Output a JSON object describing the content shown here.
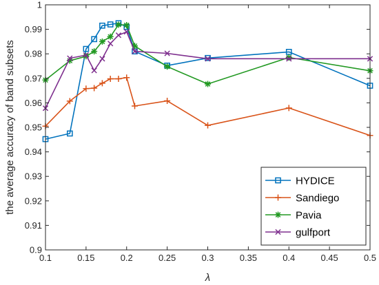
{
  "chart_data": {
    "type": "line",
    "xlabel": "λ",
    "ylabel": "the average accuracy of band subsets",
    "xlim": [
      0.1,
      0.5
    ],
    "ylim": [
      0.9,
      1.0
    ],
    "xticks": [
      0.1,
      0.15,
      0.2,
      0.25,
      0.3,
      0.35,
      0.4,
      0.45,
      0.5
    ],
    "xtick_labels": [
      "0.1",
      "0.15",
      "0.2",
      "0.25",
      "0.3",
      "0.35",
      "0.4",
      "0.45",
      "0.5"
    ],
    "yticks": [
      0.9,
      0.91,
      0.92,
      0.93,
      0.94,
      0.95,
      0.96,
      0.97,
      0.98,
      0.99,
      1.0
    ],
    "ytick_labels": [
      "0.9",
      "0.91",
      "0.92",
      "0.93",
      "0.94",
      "0.95",
      "0.96",
      "0.97",
      "0.98",
      "0.99",
      "1"
    ],
    "grid": false,
    "legend_position": "bottom-right",
    "series": [
      {
        "name": "HYDICE",
        "color": "#0072BD",
        "marker": "square",
        "x": [
          0.1,
          0.13,
          0.15,
          0.16,
          0.17,
          0.18,
          0.19,
          0.2,
          0.21,
          0.25,
          0.3,
          0.4,
          0.5
        ],
        "y": [
          0.9452,
          0.9475,
          0.982,
          0.986,
          0.9915,
          0.992,
          0.9925,
          0.991,
          0.981,
          0.9752,
          0.9783,
          0.9808,
          0.967
        ]
      },
      {
        "name": "Sandiego",
        "color": "#D95319",
        "marker": "plus",
        "x": [
          0.1,
          0.13,
          0.15,
          0.16,
          0.17,
          0.18,
          0.19,
          0.2,
          0.21,
          0.25,
          0.3,
          0.4,
          0.5
        ],
        "y": [
          0.9505,
          0.9607,
          0.9658,
          0.966,
          0.968,
          0.9698,
          0.9698,
          0.9703,
          0.9587,
          0.9608,
          0.9508,
          0.9579,
          0.9467
        ]
      },
      {
        "name": "Pavia",
        "color": "#229922",
        "marker": "asterisk",
        "x": [
          0.1,
          0.13,
          0.15,
          0.16,
          0.17,
          0.18,
          0.19,
          0.2,
          0.21,
          0.25,
          0.3,
          0.4,
          0.5
        ],
        "y": [
          0.9693,
          0.9772,
          0.979,
          0.981,
          0.985,
          0.987,
          0.9919,
          0.9917,
          0.9832,
          0.9748,
          0.9677,
          0.9785,
          0.9731
        ]
      },
      {
        "name": "gulfport",
        "color": "#7E2F8E",
        "marker": "x",
        "x": [
          0.1,
          0.13,
          0.15,
          0.16,
          0.17,
          0.18,
          0.19,
          0.2,
          0.21,
          0.25,
          0.3,
          0.4,
          0.5
        ],
        "y": [
          0.9578,
          0.9782,
          0.9795,
          0.9732,
          0.978,
          0.9842,
          0.9876,
          0.989,
          0.981,
          0.9802,
          0.978,
          0.978,
          0.978
        ]
      }
    ]
  }
}
